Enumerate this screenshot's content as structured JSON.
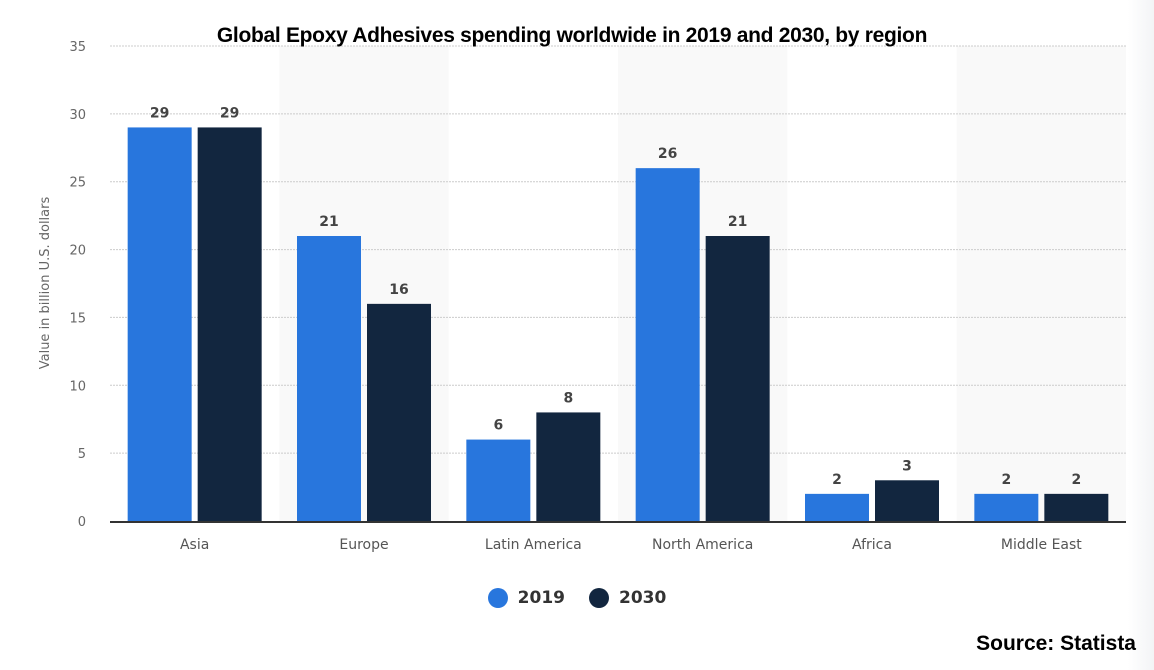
{
  "chart_data": {
    "type": "bar",
    "title": "Global Epoxy Adhesives spending worldwide in 2019 and 2030, by region",
    "xlabel": "",
    "ylabel": "Value in billion U.S. dollars",
    "ylim": [
      0,
      35
    ],
    "yticks": [
      0,
      5,
      10,
      15,
      20,
      25,
      30,
      35
    ],
    "grid": true,
    "legend_position": "bottom-center",
    "categories": [
      "Asia",
      "Europe",
      "Latin America",
      "North America",
      "Africa",
      "Middle East"
    ],
    "series": [
      {
        "name": "2019",
        "color": "#2876dd",
        "values": [
          29,
          21,
          6,
          26,
          2,
          2
        ]
      },
      {
        "name": "2030",
        "color": "#12263f",
        "values": [
          29,
          16,
          8,
          21,
          3,
          2
        ]
      }
    ],
    "data_labels": true
  },
  "source": "Source: Statista",
  "colors": {
    "band": "#f9f9f9",
    "grid": "#cccccc",
    "tick_text": "#666666",
    "label_text": "#444444"
  }
}
